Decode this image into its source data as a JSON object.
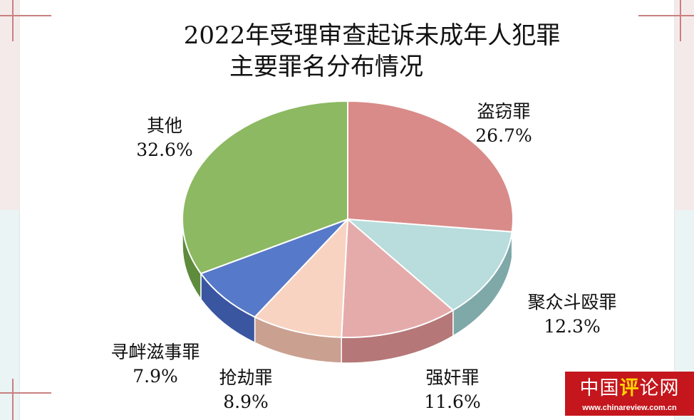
{
  "chart_data": {
    "type": "pie",
    "title": "2022年受理审查起诉未成年人犯罪",
    "subtitle": "主要罪名分布情况",
    "categories": [
      "盗窃罪",
      "聚众斗殴罪",
      "强奸罪",
      "抢劫罪",
      "寻衅滋事罪",
      "其他"
    ],
    "values": [
      26.7,
      12.3,
      11.6,
      8.9,
      7.9,
      32.6
    ],
    "value_labels": [
      "26.7%",
      "12.3%",
      "11.6%",
      "8.9%",
      "7.9%",
      "32.6%"
    ],
    "colors": [
      "#d98b89",
      "#b9dcdc",
      "#e5abab",
      "#f8d3c2",
      "#5779c9",
      "#8cb961"
    ],
    "side_colors": [
      "#a4605e",
      "#7fa8a8",
      "#b57777",
      "#caa090",
      "#3a56a0",
      "#5f8b3d"
    ],
    "legend": "none",
    "style": "3d"
  },
  "logo": {
    "part1": "中国",
    "highlight": "评",
    "part2": "论网",
    "url": "www.chinareview.com.cn"
  }
}
